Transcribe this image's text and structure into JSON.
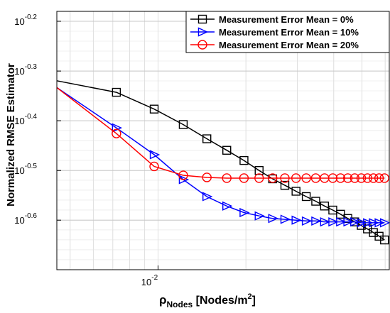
{
  "chart_data": {
    "type": "line",
    "xscale": "log",
    "yscale": "log",
    "xlim": [
      0.0045,
      0.062
    ],
    "ylim": [
      0.1995,
      0.6607
    ],
    "ylabel": "Normalized RMSE Estimator",
    "xlabel": {
      "base": "ρ",
      "sub": "Nodes",
      "unit_pre": " [Nodes/m",
      "unit_sup": "2",
      "unit_post": "]"
    },
    "xticks": [
      {
        "value": 0.01,
        "base": "10",
        "exp": "-2"
      }
    ],
    "yticks": [
      {
        "value": 0.631,
        "base": "10",
        "exp": "-0.2"
      },
      {
        "value": 0.501,
        "base": "10",
        "exp": "-0.3"
      },
      {
        "value": 0.398,
        "base": "10",
        "exp": "-0.4"
      },
      {
        "value": 0.316,
        "base": "10",
        "exp": "-0.5"
      },
      {
        "value": 0.251,
        "base": "10",
        "exp": "-0.6"
      }
    ],
    "grid": true,
    "legend_position": "top-right",
    "series": [
      {
        "name": "Measurement Error Mean = 0%",
        "color": "#000000",
        "marker": "square",
        "x": [
          0.0045,
          0.0072,
          0.0097,
          0.0122,
          0.0147,
          0.0172,
          0.0197,
          0.0222,
          0.0247,
          0.0272,
          0.0297,
          0.0322,
          0.0347,
          0.0372,
          0.0397,
          0.0422,
          0.0447,
          0.0472,
          0.0497,
          0.0522,
          0.0547,
          0.0572,
          0.0597
        ],
        "y": [
          0.479,
          0.454,
          0.42,
          0.391,
          0.366,
          0.347,
          0.331,
          0.316,
          0.304,
          0.295,
          0.287,
          0.28,
          0.274,
          0.268,
          0.263,
          0.258,
          0.253,
          0.249,
          0.245,
          0.241,
          0.237,
          0.233,
          0.229
        ]
      },
      {
        "name": "Measurement Error Mean = 10%",
        "color": "#0000ff",
        "marker": "triangle-right",
        "x": [
          0.0045,
          0.0072,
          0.0097,
          0.0122,
          0.0147,
          0.0172,
          0.0197,
          0.0222,
          0.0247,
          0.0272,
          0.0297,
          0.0322,
          0.0347,
          0.0372,
          0.0397,
          0.0422,
          0.0447,
          0.0472,
          0.0497,
          0.0522,
          0.0547,
          0.0572,
          0.0597
        ],
        "y": [
          0.464,
          0.385,
          0.34,
          0.303,
          0.28,
          0.268,
          0.26,
          0.256,
          0.253,
          0.252,
          0.251,
          0.25,
          0.25,
          0.249,
          0.249,
          0.249,
          0.249,
          0.249,
          0.248,
          0.248,
          0.248,
          0.248,
          0.248
        ]
      },
      {
        "name": "Measurement Error Mean = 20%",
        "color": "#ff0000",
        "marker": "circle",
        "x": [
          0.0045,
          0.0072,
          0.0097,
          0.0122,
          0.0147,
          0.0172,
          0.0197,
          0.0222,
          0.0247,
          0.0272,
          0.0297,
          0.0322,
          0.0347,
          0.0372,
          0.0397,
          0.0422,
          0.0447,
          0.0472,
          0.0497,
          0.0522,
          0.0547,
          0.0572,
          0.0597
        ],
        "y": [
          0.464,
          0.375,
          0.322,
          0.309,
          0.306,
          0.305,
          0.305,
          0.305,
          0.305,
          0.305,
          0.305,
          0.305,
          0.305,
          0.305,
          0.305,
          0.305,
          0.305,
          0.305,
          0.305,
          0.305,
          0.305,
          0.305,
          0.305
        ]
      }
    ]
  }
}
